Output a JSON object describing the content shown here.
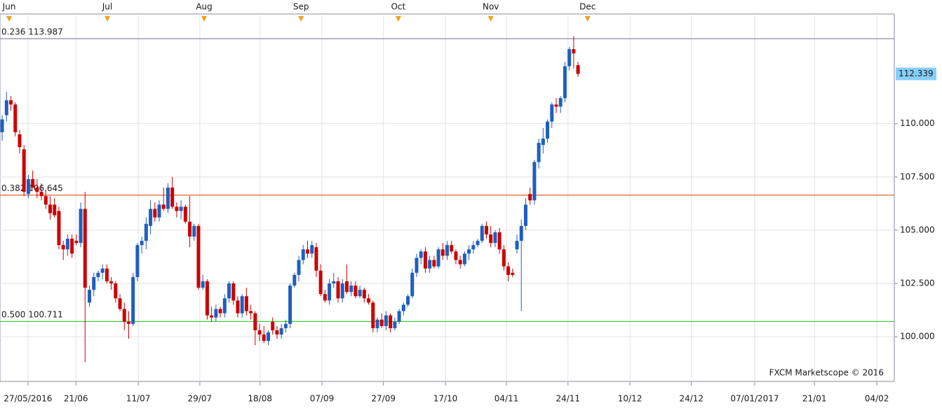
{
  "chart_data": {
    "type": "candlestick",
    "xlim": [
      -0.5,
      204.5
    ],
    "ylim": [
      97.9,
      115.15
    ],
    "yticks": [
      {
        "value": 100,
        "label": "100.000"
      },
      {
        "value": 102.5,
        "label": "102.500"
      },
      {
        "value": 105,
        "label": "105.000"
      },
      {
        "value": 107.5,
        "label": "107.500"
      },
      {
        "value": 110,
        "label": "110.000"
      }
    ],
    "xticks": [
      {
        "value": 5.9,
        "label": "27/05/2016"
      },
      {
        "value": 16.9,
        "label": "21/06"
      },
      {
        "value": 31.2,
        "label": "11/07"
      },
      {
        "value": 45.3,
        "label": "29/07"
      },
      {
        "value": 59.1,
        "label": "18/08"
      },
      {
        "value": 73.3,
        "label": "07/09"
      },
      {
        "value": 87.4,
        "label": "27/09"
      },
      {
        "value": 101.6,
        "label": "17/10"
      },
      {
        "value": 115.6,
        "label": "04/11"
      },
      {
        "value": 129.7,
        "label": "24/11"
      },
      {
        "value": 143.9,
        "label": "10/12"
      },
      {
        "value": 158,
        "label": "24/12"
      },
      {
        "value": 172.5,
        "label": "07/01/2017"
      },
      {
        "value": 186.2,
        "label": "21/01"
      },
      {
        "value": 200.5,
        "label": "04/02"
      }
    ],
    "x2ticks": [
      {
        "value": 1.6,
        "label": "Jun"
      },
      {
        "value": 24.1,
        "label": "Jul"
      },
      {
        "value": 46.3,
        "label": "Aug"
      },
      {
        "value": 68.5,
        "label": "Sep"
      },
      {
        "value": 90.8,
        "label": "Oct"
      },
      {
        "value": 112,
        "label": "Nov"
      },
      {
        "value": 134.2,
        "label": "Dec"
      }
    ],
    "grid": true,
    "up_color": "#1f5fbf",
    "down_color": "#cc0000",
    "marker_color": "#f0a020",
    "levels": [
      {
        "label": "0.236",
        "value": 113.987,
        "color": "#8a8aa8"
      },
      {
        "label": "0.382",
        "value": 106.645,
        "color": "#e0622a"
      },
      {
        "label": "0.500",
        "value": 100.711,
        "color": "#33cc33"
      }
    ],
    "last_price": 112.339,
    "last_price_color": "#87cefa",
    "watermark": "FXCM Marketscope © 2016",
    "x": [
      0,
      1,
      2,
      3,
      4,
      5,
      6,
      7,
      8,
      9,
      10,
      11,
      12,
      13,
      14,
      15,
      16,
      17,
      18,
      19,
      20,
      21,
      22,
      23,
      24,
      25,
      26,
      27,
      28,
      29,
      30,
      31,
      32,
      33,
      34,
      35,
      36,
      37,
      38,
      39,
      40,
      41,
      42,
      43,
      44,
      45,
      46,
      47,
      48,
      49,
      50,
      51,
      52,
      53,
      54,
      55,
      56,
      57,
      58,
      59,
      60,
      61,
      62,
      63,
      64,
      65,
      66,
      67,
      68,
      69,
      70,
      71,
      72,
      73,
      74,
      75,
      76,
      77,
      78,
      79,
      80,
      81,
      82,
      83,
      84,
      85,
      86,
      87,
      88,
      89,
      90,
      91,
      92,
      93,
      94,
      95,
      96,
      97,
      98,
      99,
      100,
      101,
      102,
      103,
      104,
      105,
      106,
      107,
      108,
      109,
      110,
      111,
      112,
      113,
      114,
      115,
      116,
      117,
      118,
      119,
      120,
      121,
      122,
      123,
      124,
      125,
      126,
      127,
      128,
      129,
      130,
      131,
      132
    ],
    "ohlc": [
      [
        109.6,
        110.4,
        109.2,
        110.2
      ],
      [
        110.4,
        111.5,
        110.1,
        111.1
      ],
      [
        111.1,
        111.3,
        110.6,
        110.9
      ],
      [
        110.9,
        111.0,
        109.4,
        109.6
      ],
      [
        109.5,
        109.7,
        108.6,
        108.9
      ],
      [
        108.8,
        109.0,
        106.6,
        106.8
      ],
      [
        106.7,
        107.6,
        106.5,
        107.4
      ],
      [
        107.4,
        107.8,
        106.9,
        107.0
      ],
      [
        107.0,
        107.4,
        106.5,
        106.8
      ],
      [
        106.8,
        107.2,
        106.4,
        106.6
      ],
      [
        106.6,
        106.9,
        106.0,
        106.2
      ],
      [
        106.2,
        106.6,
        105.5,
        105.8
      ],
      [
        106.2,
        106.5,
        105.6,
        105.7
      ],
      [
        105.9,
        106.1,
        104.1,
        104.3
      ],
      [
        104.3,
        104.5,
        103.6,
        104.1
      ],
      [
        104.1,
        104.8,
        103.8,
        104.6
      ],
      [
        104.6,
        104.8,
        103.7,
        103.9
      ],
      [
        104.5,
        104.8,
        104.3,
        104.4
      ],
      [
        104.4,
        106.3,
        104.2,
        106.0
      ],
      [
        106.0,
        106.8,
        98.8,
        102.3
      ],
      [
        101.6,
        102.4,
        101.4,
        102.2
      ],
      [
        102.2,
        103.0,
        101.9,
        102.8
      ],
      [
        102.8,
        103.1,
        102.6,
        103.0
      ],
      [
        103.0,
        103.4,
        102.7,
        103.2
      ],
      [
        103.2,
        103.4,
        102.5,
        102.6
      ],
      [
        102.6,
        102.8,
        102.2,
        102.5
      ],
      [
        102.5,
        102.6,
        101.6,
        101.8
      ],
      [
        101.8,
        102.0,
        101.2,
        101.3
      ],
      [
        101.3,
        101.6,
        100.3,
        100.7
      ],
      [
        100.7,
        101.2,
        99.9,
        100.6
      ],
      [
        100.6,
        103.0,
        100.5,
        102.8
      ],
      [
        102.8,
        104.4,
        102.6,
        104.3
      ],
      [
        104.3,
        104.7,
        103.9,
        104.5
      ],
      [
        104.5,
        105.6,
        104.1,
        105.3
      ],
      [
        105.2,
        106.4,
        104.8,
        106.0
      ],
      [
        106.0,
        106.3,
        105.4,
        105.6
      ],
      [
        105.6,
        106.4,
        105.4,
        106.2
      ],
      [
        106.2,
        107.0,
        105.9,
        106.0
      ],
      [
        106.0,
        107.2,
        105.8,
        107.0
      ],
      [
        107.0,
        107.5,
        106.0,
        106.1
      ],
      [
        106.1,
        106.3,
        105.6,
        105.9
      ],
      [
        105.9,
        106.4,
        105.5,
        106.1
      ],
      [
        106.1,
        106.2,
        105.3,
        105.4
      ],
      [
        105.4,
        106.6,
        104.2,
        104.7
      ],
      [
        104.7,
        105.3,
        104.5,
        105.2
      ],
      [
        105.2,
        105.3,
        102.2,
        102.3
      ],
      [
        102.3,
        102.9,
        102.2,
        102.6
      ],
      [
        102.6,
        102.7,
        100.8,
        101.0
      ],
      [
        101.0,
        101.4,
        100.7,
        100.9
      ],
      [
        100.9,
        101.5,
        100.7,
        101.3
      ],
      [
        101.3,
        101.4,
        100.9,
        101.1
      ],
      [
        101.1,
        102.0,
        100.9,
        101.8
      ],
      [
        101.8,
        102.6,
        101.6,
        102.5
      ],
      [
        102.5,
        102.6,
        101.5,
        101.7
      ],
      [
        101.7,
        101.9,
        100.9,
        101.1
      ],
      [
        101.1,
        102.0,
        100.9,
        101.9
      ],
      [
        101.9,
        102.3,
        101.0,
        101.2
      ],
      [
        101.2,
        101.5,
        100.8,
        101.1
      ],
      [
        101.1,
        101.2,
        99.6,
        100.3
      ],
      [
        100.3,
        100.6,
        99.8,
        100.1
      ],
      [
        100.1,
        100.5,
        99.7,
        99.8
      ],
      [
        99.8,
        100.3,
        99.6,
        100.2
      ],
      [
        100.7,
        100.9,
        100.1,
        100.3
      ],
      [
        100.3,
        100.5,
        99.9,
        100.1
      ],
      [
        100.1,
        100.6,
        99.9,
        100.4
      ],
      [
        100.4,
        100.8,
        100.2,
        100.6
      ],
      [
        100.6,
        102.5,
        100.4,
        102.4
      ],
      [
        102.4,
        103.0,
        102.3,
        102.9
      ],
      [
        102.9,
        103.8,
        102.6,
        103.6
      ],
      [
        103.6,
        104.3,
        103.4,
        104.1
      ],
      [
        104.1,
        104.5,
        103.7,
        103.9
      ],
      [
        103.9,
        104.5,
        103.7,
        104.3
      ],
      [
        104.2,
        104.4,
        102.8,
        103.1
      ],
      [
        103.1,
        103.4,
        101.9,
        102.0
      ],
      [
        102.0,
        102.2,
        101.6,
        101.7
      ],
      [
        101.7,
        102.7,
        101.5,
        102.5
      ],
      [
        102.5,
        103.0,
        102.3,
        102.6
      ],
      [
        102.6,
        102.8,
        101.6,
        101.8
      ],
      [
        101.8,
        102.7,
        101.6,
        102.5
      ],
      [
        102.6,
        103.4,
        102.0,
        102.1
      ],
      [
        102.1,
        102.6,
        101.9,
        102.4
      ],
      [
        102.4,
        102.6,
        101.8,
        101.9
      ],
      [
        101.9,
        102.4,
        101.8,
        102.2
      ],
      [
        102.2,
        102.3,
        101.6,
        101.8
      ],
      [
        101.8,
        102.0,
        101.5,
        101.6
      ],
      [
        101.6,
        101.7,
        100.2,
        100.4
      ],
      [
        100.4,
        100.9,
        100.2,
        100.8
      ],
      [
        100.8,
        101.1,
        100.4,
        100.5
      ],
      [
        100.5,
        101.2,
        100.3,
        101.0
      ],
      [
        101.0,
        101.1,
        100.2,
        100.4
      ],
      [
        100.4,
        100.9,
        100.3,
        100.7
      ],
      [
        100.7,
        101.3,
        100.6,
        101.2
      ],
      [
        101.2,
        101.6,
        101.0,
        101.5
      ],
      [
        101.5,
        102.0,
        101.4,
        101.9
      ],
      [
        101.9,
        103.2,
        101.8,
        103.0
      ],
      [
        103.0,
        103.9,
        102.8,
        103.7
      ],
      [
        103.7,
        104.1,
        103.4,
        104.0
      ],
      [
        104.0,
        104.2,
        103.0,
        103.2
      ],
      [
        103.2,
        103.8,
        103.0,
        103.6
      ],
      [
        103.6,
        103.8,
        103.2,
        103.3
      ],
      [
        103.3,
        104.2,
        103.2,
        104.1
      ],
      [
        104.1,
        104.4,
        103.6,
        103.8
      ],
      [
        103.8,
        104.5,
        103.6,
        104.3
      ],
      [
        104.3,
        104.5,
        103.9,
        104.0
      ],
      [
        104.0,
        104.1,
        103.4,
        103.6
      ],
      [
        103.6,
        103.8,
        103.2,
        103.4
      ],
      [
        103.4,
        104.0,
        103.3,
        103.9
      ],
      [
        103.9,
        104.3,
        103.6,
        104.1
      ],
      [
        104.1,
        104.5,
        103.9,
        104.3
      ],
      [
        104.3,
        104.6,
        104.2,
        104.5
      ],
      [
        104.5,
        105.3,
        104.4,
        105.2
      ],
      [
        105.2,
        105.4,
        104.6,
        104.8
      ],
      [
        104.8,
        105.2,
        104.2,
        104.4
      ],
      [
        104.4,
        105.0,
        104.2,
        104.9
      ],
      [
        104.9,
        105.1,
        103.9,
        104.1
      ],
      [
        104.1,
        104.3,
        103.1,
        103.3
      ],
      [
        103.3,
        103.5,
        102.6,
        102.9
      ],
      [
        103.0,
        103.2,
        102.8,
        102.9
      ],
      [
        104.1,
        104.8,
        103.9,
        104.5
      ],
      [
        104.5,
        105.5,
        101.2,
        105.2
      ],
      [
        105.2,
        106.5,
        105.0,
        106.2
      ],
      [
        106.7,
        107.0,
        106.2,
        106.4
      ],
      [
        106.4,
        108.3,
        106.2,
        108.2
      ],
      [
        108.2,
        109.3,
        107.9,
        109.1
      ],
      [
        109.0,
        109.8,
        108.6,
        109.3
      ],
      [
        109.3,
        110.2,
        109.1,
        110.1
      ],
      [
        110.1,
        111.0,
        109.8,
        110.9
      ],
      [
        110.9,
        111.2,
        110.5,
        110.8
      ],
      [
        110.8,
        111.3,
        110.5,
        111.2
      ],
      [
        111.2,
        112.9,
        111.0,
        112.7
      ],
      [
        112.7,
        113.6,
        112.5,
        113.5
      ],
      [
        113.5,
        114.1,
        112.6,
        113.3
      ],
      [
        112.75,
        112.9,
        112.2,
        112.339
      ]
    ]
  }
}
